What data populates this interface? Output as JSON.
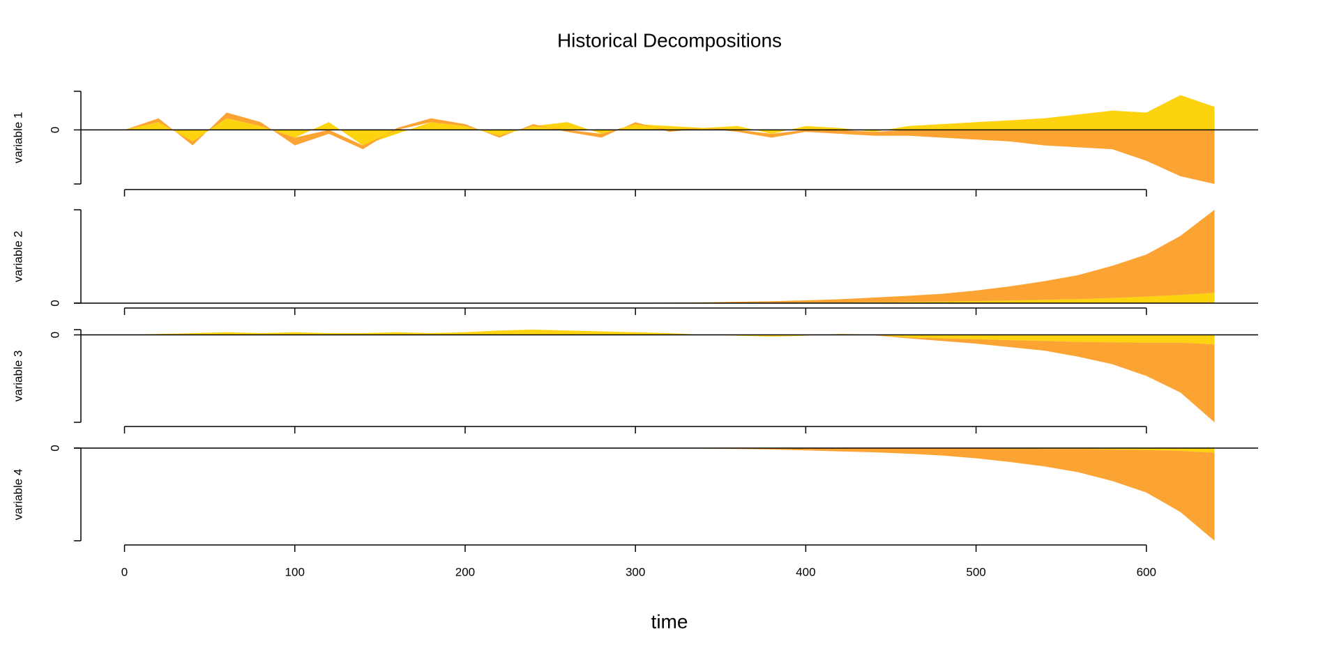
{
  "chart_data": [
    {
      "type": "area",
      "title": "Historical Decompositions",
      "ylabel": "variable 1",
      "x": [
        0,
        20,
        40,
        60,
        80,
        100,
        120,
        140,
        160,
        180,
        200,
        220,
        240,
        260,
        280,
        300,
        320,
        340,
        360,
        380,
        400,
        420,
        440,
        460,
        480,
        500,
        520,
        540,
        560,
        580,
        600,
        620,
        640
      ],
      "series": [
        {
          "color": "#FDD20F",
          "values": [
            0,
            0.2,
            -0.3,
            0.3,
            0.1,
            -0.2,
            0.2,
            -0.4,
            -0.1,
            0.2,
            0.1,
            -0.15,
            0.1,
            0.2,
            -0.1,
            0.15,
            0.1,
            0.05,
            0.1,
            -0.1,
            0.1,
            0.05,
            -0.05,
            0.1,
            0.15,
            0.2,
            0.25,
            0.3,
            0.4,
            0.5,
            0.45,
            0.9,
            0.6
          ]
        },
        {
          "color": "#FBA434",
          "values": [
            0,
            0.1,
            -0.1,
            0.15,
            0.1,
            -0.2,
            -0.1,
            -0.1,
            0.05,
            0.1,
            0.05,
            -0.05,
            0.05,
            -0.05,
            -0.1,
            0.05,
            -0.05,
            0,
            -0.05,
            -0.1,
            -0.05,
            -0.1,
            -0.1,
            -0.15,
            -0.2,
            -0.25,
            -0.3,
            -0.4,
            -0.45,
            -0.5,
            -0.8,
            -1.2,
            -1.4
          ]
        }
      ],
      "xlim": [
        -25.6,
        665.6
      ],
      "xticks": [
        0,
        100,
        200,
        300,
        400,
        500,
        600
      ],
      "ylim": [
        -1.4,
        1
      ],
      "yticks": [
        0
      ]
    },
    {
      "type": "area",
      "ylabel": "variable 2",
      "x": [
        0,
        20,
        40,
        60,
        80,
        100,
        120,
        140,
        160,
        180,
        200,
        220,
        240,
        260,
        280,
        300,
        320,
        340,
        360,
        380,
        400,
        420,
        440,
        460,
        480,
        500,
        520,
        540,
        560,
        580,
        600,
        620,
        640
      ],
      "series": [
        {
          "color": "#FDD20F",
          "values": [
            0,
            0,
            0,
            0,
            0,
            0,
            0,
            0,
            0,
            0,
            0,
            0,
            0,
            0,
            0,
            0,
            0,
            0,
            0.02,
            0.03,
            0.05,
            0.07,
            0.1,
            0.13,
            0.17,
            0.22,
            0.28,
            0.35,
            0.43,
            0.55,
            0.7,
            0.88,
            1.1
          ]
        },
        {
          "color": "#FBA434",
          "values": [
            0,
            0,
            0,
            0,
            0,
            0,
            0,
            0,
            0,
            0,
            0,
            0,
            0,
            0.01,
            0.02,
            0.03,
            0.05,
            0.08,
            0.13,
            0.17,
            0.25,
            0.35,
            0.5,
            0.65,
            0.83,
            1.13,
            1.52,
            2.0,
            2.57,
            3.45,
            4.5,
            6.32,
            8.9
          ]
        }
      ],
      "xlim": [
        -25.6,
        665.6
      ],
      "xticks": [
        0,
        100,
        200,
        300,
        400,
        500,
        600
      ],
      "ylim": [
        0,
        10
      ],
      "yticks": [
        0
      ]
    },
    {
      "type": "area",
      "ylabel": "variable 3",
      "x": [
        0,
        20,
        40,
        60,
        80,
        100,
        120,
        140,
        160,
        180,
        200,
        220,
        240,
        260,
        280,
        300,
        320,
        340,
        360,
        380,
        400,
        420,
        440,
        460,
        480,
        500,
        520,
        540,
        560,
        580,
        600,
        620,
        640
      ],
      "series": [
        {
          "color": "#FDD20F",
          "values": [
            0,
            0.1,
            0.2,
            0.3,
            0.2,
            0.3,
            0.2,
            0.2,
            0.3,
            0.2,
            0.3,
            0.5,
            0.6,
            0.5,
            0.4,
            0.3,
            0.2,
            0,
            -0.1,
            -0.2,
            -0.1,
            0.1,
            0,
            -0.3,
            -0.4,
            -0.5,
            -0.6,
            -0.7,
            -0.8,
            -0.85,
            -0.9,
            -0.9,
            -1.1
          ]
        },
        {
          "color": "#FBA434",
          "values": [
            0,
            0,
            0,
            0,
            0,
            0,
            0,
            0,
            0,
            0,
            0,
            0,
            0,
            0,
            0,
            0,
            0,
            0,
            0,
            0,
            0,
            0,
            -0.05,
            -0.1,
            -0.3,
            -0.5,
            -0.8,
            -1.1,
            -1.7,
            -2.5,
            -3.8,
            -5.7,
            -8.9
          ]
        }
      ],
      "xlim": [
        -25.6,
        665.6
      ],
      "xticks": [
        0,
        100,
        200,
        300,
        400,
        500,
        600
      ],
      "ylim": [
        -10,
        0.6
      ],
      "yticks": [
        0
      ]
    },
    {
      "type": "area",
      "ylabel": "variable 4",
      "xlabel": "time",
      "x": [
        0,
        20,
        40,
        60,
        80,
        100,
        120,
        140,
        160,
        180,
        200,
        220,
        240,
        260,
        280,
        300,
        320,
        340,
        360,
        380,
        400,
        420,
        440,
        460,
        480,
        500,
        520,
        540,
        560,
        580,
        600,
        620,
        640
      ],
      "series": [
        {
          "color": "#FDD20F",
          "values": [
            0,
            0,
            0,
            0,
            0,
            0,
            0,
            0,
            0,
            0,
            0,
            0,
            0,
            0,
            0,
            0,
            0,
            0,
            0,
            0,
            0,
            0,
            0,
            0,
            0,
            0,
            -0.05,
            -0.08,
            -0.1,
            -0.15,
            -0.2,
            -0.3,
            -0.5
          ]
        },
        {
          "color": "#FBA434",
          "values": [
            0,
            0,
            0,
            0,
            0,
            0,
            0,
            0,
            0,
            0,
            0,
            0,
            0,
            0,
            0,
            0,
            -0.02,
            -0.05,
            -0.1,
            -0.15,
            -0.25,
            -0.35,
            -0.45,
            -0.6,
            -0.8,
            -1.1,
            -1.45,
            -1.9,
            -2.5,
            -3.4,
            -4.6,
            -6.6,
            -9.5
          ]
        }
      ],
      "xlim": [
        -25.6,
        665.6
      ],
      "xticks": [
        0,
        100,
        200,
        300,
        400,
        500,
        600
      ],
      "ylim": [
        -10,
        0
      ],
      "yticks": [
        0
      ]
    }
  ]
}
